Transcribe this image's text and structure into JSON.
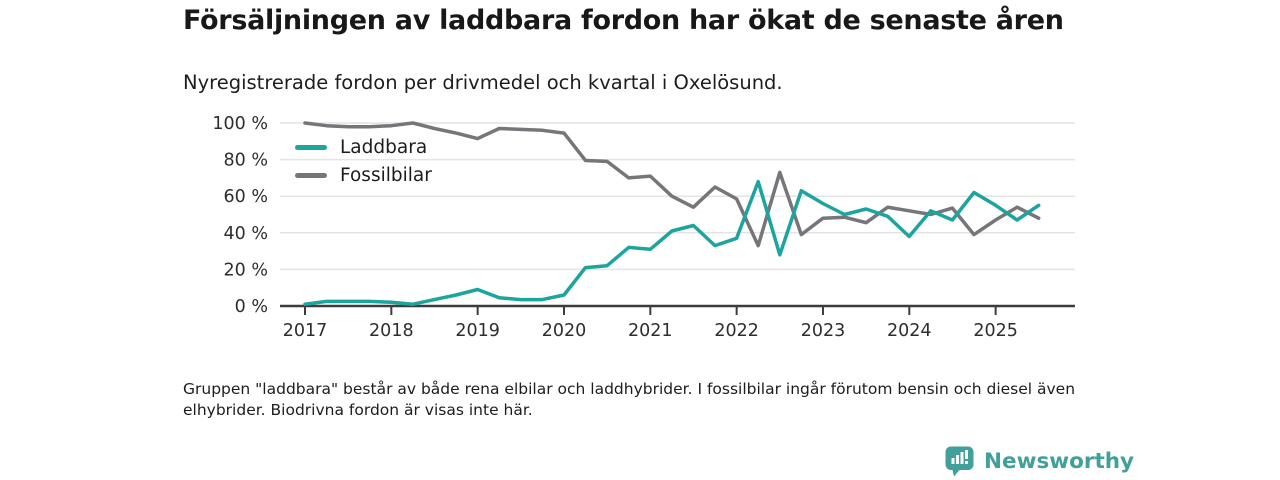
{
  "header": {
    "title": "Försäljningen av laddbara fordon har ökat de senaste åren",
    "subtitle": "Nyregistrerade fordon per drivmedel och kvartal i Oxelösund."
  },
  "chart_data": {
    "type": "line",
    "x_unit": "quarter",
    "x_start": "2017-Q1",
    "x_end": "2025-Q3",
    "year_ticks": [
      "2017",
      "2018",
      "2019",
      "2020",
      "2021",
      "2022",
      "2023",
      "2024",
      "2025"
    ],
    "y_tick_labels": [
      "0 %",
      "20 %",
      "40 %",
      "60 %",
      "80 %",
      "100 %"
    ],
    "ylim": [
      0,
      100
    ],
    "grid": true,
    "legend_position": "top-left-inside",
    "series": [
      {
        "name": "Laddbara",
        "color": "#1ca49e",
        "values": [
          1,
          2.5,
          2.5,
          2.5,
          2,
          1,
          3.5,
          6,
          9,
          4.5,
          3.5,
          3.5,
          6,
          21,
          22,
          32,
          31,
          41,
          44,
          33,
          37,
          68,
          28,
          63,
          56,
          50,
          53,
          49,
          38,
          52,
          47,
          62,
          55,
          47,
          55
        ]
      },
      {
        "name": "Fossilbilar",
        "color": "#76767a",
        "values": [
          100,
          98.5,
          98,
          98,
          98.5,
          100,
          97,
          94.5,
          91.5,
          97,
          96.5,
          96,
          94.5,
          79.5,
          79,
          70,
          71,
          60,
          54,
          65,
          58.5,
          33,
          73,
          39,
          48,
          48.5,
          45.5,
          54,
          52,
          50,
          53.5,
          39,
          47,
          54,
          48
        ]
      }
    ],
    "style": {
      "grid_color": "#e4e4e4",
      "axis_color": "#3c3c3c",
      "tick_label_color": "#2e2e2e"
    }
  },
  "footer": {
    "note_line1": "Gruppen \"laddbara\" består av både rena elbilar och laddhybrider. I fossilbilar ingår förutom bensin och diesel även",
    "note_line2": "elhybrider. Biodrivna fordon är visas inte här.",
    "brand": "Newsworthy",
    "brand_color": "#41a099"
  }
}
